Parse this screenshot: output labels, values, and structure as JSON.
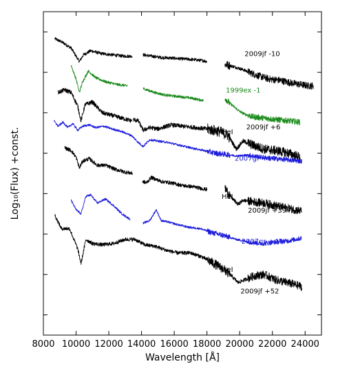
{
  "chart_data": {
    "type": "line",
    "xlabel": "Wavelength [Å]",
    "ylabel": "Log₁₀(Flux) +const.",
    "xlim": [
      8000,
      25000
    ],
    "ylim": [
      0,
      12
    ],
    "x_ticks": [
      8000,
      10000,
      12000,
      14000,
      16000,
      18000,
      20000,
      22000,
      24000
    ],
    "x_tick_labels": [
      "8000",
      "10000",
      "12000",
      "14000",
      "16000",
      "18000",
      "20000",
      "22000",
      "24000"
    ],
    "y_tick_count": 8,
    "grid": false,
    "legend": "none",
    "series": [
      {
        "name": "2009jf -10",
        "color": "#000000",
        "noise": 0.06,
        "offset": 11.0,
        "segments": [
          {
            "x": [
              8700,
              9200,
              9700,
              10050,
              10200,
              10450,
              10900,
              11500,
              12200,
              12900,
              13450
            ],
            "y": [
              0,
              -0.15,
              -0.35,
              -0.7,
              -0.85,
              -0.6,
              -0.45,
              -0.55,
              -0.6,
              -0.65,
              -0.65
            ]
          },
          {
            "x": [
              14100,
              14600,
              15200,
              15800,
              16500,
              17200,
              17800,
              18000
            ],
            "y": [
              -0.6,
              -0.65,
              -0.7,
              -0.72,
              -0.75,
              -0.78,
              -0.82,
              -0.85
            ]
          },
          {
            "x": [
              19100,
              19700,
              20200,
              21000,
              21800,
              22500,
              23200,
              23700,
              24200,
              24500
            ],
            "y": [
              -0.95,
              -1.05,
              -1.15,
              -1.35,
              -1.5,
              -1.55,
              -1.65,
              -1.7,
              -1.75,
              -1.75
            ]
          }
        ]
      },
      {
        "name": "1999ex -1",
        "color": "#1a8a1a",
        "noise": 0.05,
        "offset": 10.0,
        "segments": [
          {
            "x": [
              9700,
              10000,
              10200,
              10400,
              10750,
              11200,
              11800,
              12500,
              13150
            ],
            "y": [
              0,
              -0.5,
              -1.0,
              -0.6,
              -0.2,
              -0.45,
              -0.6,
              -0.7,
              -0.75
            ]
          },
          {
            "x": [
              14100,
              14800,
              15500,
              16300,
              17000,
              17800
            ],
            "y": [
              -0.85,
              -1.0,
              -1.1,
              -1.15,
              -1.2,
              -1.3
            ]
          },
          {
            "x": [
              19100,
              19400,
              19800,
              20000,
              20300,
              20800,
              21500,
              22200,
              23000,
              23700
            ],
            "y": [
              -1.2,
              -1.4,
              -1.6,
              -1.7,
              -1.8,
              -1.9,
              -1.95,
              -2.0,
              -2.05,
              -2.1
            ]
          }
        ]
      },
      {
        "name": "2009jf +6",
        "color": "#000000",
        "noise": 0.08,
        "offset": 9.0,
        "segments": [
          {
            "x": [
              8900,
              9300,
              9700,
              10100,
              10300,
              10550,
              11000,
              11600,
              12200,
              12800,
              13400
            ],
            "y": [
              0,
              0.1,
              0,
              -0.5,
              -1.05,
              -0.45,
              -0.35,
              -0.75,
              -0.85,
              -0.95,
              -1.05
            ]
          },
          {
            "x": [
              13500,
              13800,
              14100,
              14500,
              15000,
              15800,
              16500,
              17300,
              18000,
              18800,
              19300,
              19800,
              20200,
              20800,
              21500,
              22200,
              23000,
              23700
            ],
            "y": [
              -1.0,
              -1.05,
              -1.4,
              -1.3,
              -1.35,
              -1.2,
              -1.25,
              -1.3,
              -1.35,
              -1.45,
              -1.6,
              -2.1,
              -1.8,
              -1.95,
              -2.1,
              -2.15,
              -2.25,
              -2.4
            ]
          }
        ]
      },
      {
        "name": "2007gr +16",
        "color": "#1c1cdc",
        "noise": 0.04,
        "offset": 7.5,
        "segments": [
          {
            "x": [
              8650,
              8900,
              9200,
              9500,
              9800,
              10100,
              10400,
              10800,
              11200,
              11700,
              12200,
              12800,
              13400,
              13800,
              14100,
              14500,
              15000,
              15600,
              16300,
              17000,
              17800,
              18500,
              19200,
              19800,
              20500,
              21300,
              22100,
              23000,
              23800
            ],
            "y": [
              0.45,
              0.25,
              0.4,
              0.2,
              0.35,
              0.1,
              0.25,
              0.3,
              0.2,
              0.25,
              0.15,
              0.05,
              -0.1,
              -0.35,
              -0.5,
              -0.25,
              -0.3,
              -0.35,
              -0.45,
              -0.55,
              -0.65,
              -0.75,
              -0.8,
              -0.85,
              -0.82,
              -0.9,
              -0.95,
              -1.0,
              -1.05
            ]
          }
        ]
      },
      {
        "name": "2009jf +39",
        "color": "#000000",
        "noise": 0.07,
        "offset": 6.0,
        "segments": [
          {
            "x": [
              9300,
              9700,
              10000,
              10200,
              10400,
              10800,
              11300,
              11800,
              12400,
              13000,
              13450
            ],
            "y": [
              0.95,
              0.85,
              0.6,
              0.2,
              0.45,
              0.55,
              0.3,
              0.3,
              0.15,
              0.05,
              0
            ]
          },
          {
            "x": [
              14050,
              14300,
              14600,
              15200,
              15800,
              16500,
              17200,
              18000
            ],
            "y": [
              -0.3,
              -0.35,
              -0.15,
              -0.3,
              -0.35,
              -0.45,
              -0.5,
              -0.6
            ]
          },
          {
            "x": [
              19100,
              19500,
              19900,
              20200,
              20800,
              21500,
              22200,
              23000,
              23800
            ],
            "y": [
              -0.55,
              -0.9,
              -1.15,
              -1.0,
              -1.05,
              -1.1,
              -1.2,
              -1.3,
              -1.4
            ]
          }
        ]
      },
      {
        "name": "2007gr +47",
        "color": "#1c1cdc",
        "noise": 0.04,
        "offset": 5.0,
        "segments": [
          {
            "x": [
              9700,
              10000,
              10300,
              10600,
              10900,
              11300,
              11800,
              12300,
              12800,
              13300
            ],
            "y": [
              0,
              -0.35,
              -0.5,
              0.15,
              0.2,
              -0.1,
              0.05,
              -0.2,
              -0.5,
              -0.7
            ]
          },
          {
            "x": [
              14100,
              14500,
              14900,
              15200,
              15600,
              16200,
              16900,
              17600,
              18300,
              19000,
              19800,
              20600,
              21400,
              22200,
              23000,
              23800
            ],
            "y": [
              -0.85,
              -0.75,
              -0.35,
              -0.75,
              -0.8,
              -0.9,
              -1.0,
              -1.05,
              -1.2,
              -1.3,
              -1.45,
              -1.55,
              -1.6,
              -1.55,
              -1.5,
              -1.4
            ]
          }
        ]
      },
      {
        "name": "2009jf +52",
        "color": "#000000",
        "noise": 0.07,
        "offset": 3.5,
        "segments": [
          {
            "x": [
              8700,
              9100,
              9600,
              10100,
              10300,
              10600,
              11000,
              11600,
              12300,
              13000,
              13600,
              14200,
              14800,
              15500,
              16200,
              17000,
              17700,
              18300,
              19000,
              19500,
              19900,
              20300,
              20900,
              21500,
              22200,
              22900,
              23800
            ],
            "y": [
              0.95,
              0.45,
              0.45,
              -0.3,
              -0.85,
              0.05,
              -0.1,
              -0.15,
              -0.1,
              0.05,
              0.05,
              -0.15,
              -0.2,
              -0.35,
              -0.45,
              -0.45,
              -0.6,
              -0.8,
              -1.05,
              -1.3,
              -1.55,
              -1.45,
              -1.3,
              -1.25,
              -1.45,
              -1.55,
              -1.7
            ]
          }
        ]
      }
    ],
    "annotations": [
      {
        "text": "2009jf -10",
        "x": 20300,
        "y": 10.35,
        "color": "#000000"
      },
      {
        "text": "1999ex  -1",
        "x": 19150,
        "y": 9.0,
        "color": "#1a8a1a"
      },
      {
        "text": "HeI",
        "x": 18900,
        "y": 7.45,
        "color": "#000000"
      },
      {
        "text": "2009jf    +6",
        "x": 20400,
        "y": 7.63,
        "color": "#000000"
      },
      {
        "text": "2007gr  +16",
        "x": 19700,
        "y": 6.47,
        "color": "#1c1cdc"
      },
      {
        "text": "HeI",
        "x": 18900,
        "y": 5.05,
        "color": "#000000"
      },
      {
        "text": "2009jf    +39",
        "x": 20500,
        "y": 4.55,
        "color": "#000000"
      },
      {
        "text": "2007gr   +47",
        "x": 20100,
        "y": 3.4,
        "color": "#1c1cdc"
      },
      {
        "text": "HeI",
        "x": 18900,
        "y": 2.35,
        "color": "#000000"
      },
      {
        "text": "2009jf    +52",
        "x": 20050,
        "y": 1.55,
        "color": "#000000"
      }
    ]
  }
}
